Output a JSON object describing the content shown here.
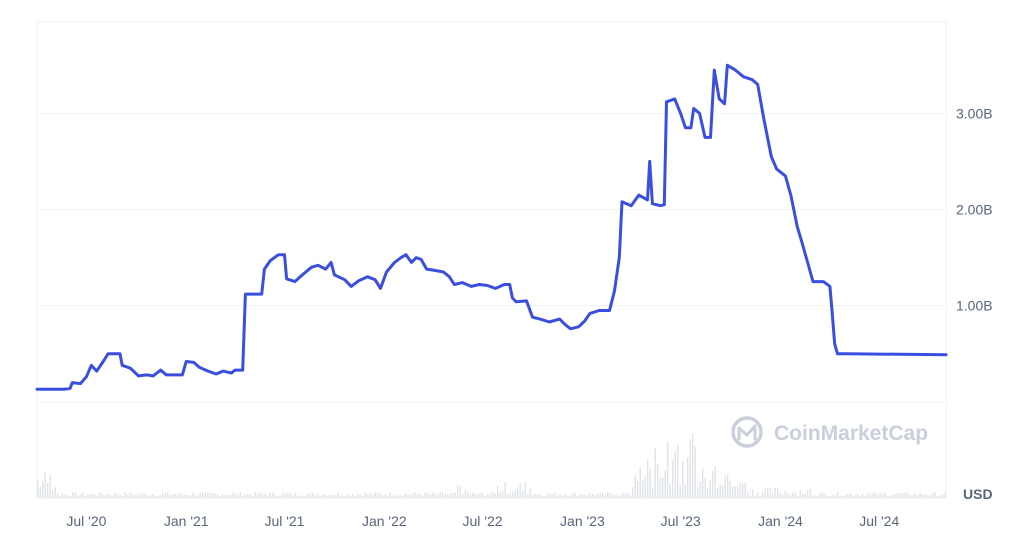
{
  "chart_data": {
    "type": "line",
    "title": "",
    "xlabel": "",
    "ylabel": "",
    "unit_label": "USD",
    "grid": true,
    "watermark": "CoinMarketCap",
    "colors": {
      "line": "#3a4fe0",
      "grid": "#eff2f5",
      "volume": "#dfe3ea",
      "axis_text": "#58667e"
    },
    "x_ticks": [
      "Jul '20",
      "Jan '21",
      "Jul '21",
      "Jan '22",
      "Jul '22",
      "Jan '23",
      "Jul '23",
      "Jan '24",
      "Jul '24"
    ],
    "x_range": [
      "2020-04-01",
      "2024-11-01"
    ],
    "y_ticks": [
      1000000000,
      2000000000,
      3000000000
    ],
    "y_tick_labels": [
      "1.00B",
      "2.00B",
      "3.00B"
    ],
    "ylim": [
      -1000000000,
      3950000000
    ],
    "series": [
      {
        "values": [
          [
            "2020-04-01",
            0.13
          ],
          [
            "2020-05-20",
            0.13
          ],
          [
            "2020-06-01",
            0.14
          ],
          [
            "2020-06-05",
            0.2
          ],
          [
            "2020-06-20",
            0.19
          ],
          [
            "2020-07-01",
            0.26
          ],
          [
            "2020-07-10",
            0.38
          ],
          [
            "2020-07-20",
            0.32
          ],
          [
            "2020-08-01",
            0.42
          ],
          [
            "2020-08-10",
            0.5
          ],
          [
            "2020-09-01",
            0.5
          ],
          [
            "2020-09-05",
            0.38
          ],
          [
            "2020-09-20",
            0.35
          ],
          [
            "2020-10-05",
            0.27
          ],
          [
            "2020-10-20",
            0.28
          ],
          [
            "2020-11-01",
            0.27
          ],
          [
            "2020-11-15",
            0.33
          ],
          [
            "2020-11-25",
            0.28
          ],
          [
            "2020-12-10",
            0.28
          ],
          [
            "2020-12-25",
            0.28
          ],
          [
            "2021-01-01",
            0.42
          ],
          [
            "2021-01-15",
            0.41
          ],
          [
            "2021-01-25",
            0.36
          ],
          [
            "2021-02-10",
            0.32
          ],
          [
            "2021-02-25",
            0.29
          ],
          [
            "2021-03-10",
            0.32
          ],
          [
            "2021-03-25",
            0.3
          ],
          [
            "2021-04-01",
            0.33
          ],
          [
            "2021-04-15",
            0.33
          ],
          [
            "2021-04-20",
            1.12
          ],
          [
            "2021-05-20",
            1.12
          ],
          [
            "2021-05-25",
            1.38
          ],
          [
            "2021-06-05",
            1.47
          ],
          [
            "2021-06-20",
            1.53
          ],
          [
            "2021-07-01",
            1.53
          ],
          [
            "2021-07-05",
            1.28
          ],
          [
            "2021-07-20",
            1.25
          ],
          [
            "2021-08-05",
            1.33
          ],
          [
            "2021-08-20",
            1.4
          ],
          [
            "2021-09-01",
            1.42
          ],
          [
            "2021-09-15",
            1.38
          ],
          [
            "2021-09-25",
            1.45
          ],
          [
            "2021-10-01",
            1.32
          ],
          [
            "2021-10-20",
            1.27
          ],
          [
            "2021-11-01",
            1.2
          ],
          [
            "2021-11-15",
            1.26
          ],
          [
            "2021-12-01",
            1.3
          ],
          [
            "2021-12-15",
            1.27
          ],
          [
            "2021-12-25",
            1.18
          ],
          [
            "2022-01-05",
            1.35
          ],
          [
            "2022-01-20",
            1.45
          ],
          [
            "2022-02-01",
            1.5
          ],
          [
            "2022-02-10",
            1.53
          ],
          [
            "2022-02-20",
            1.45
          ],
          [
            "2022-03-01",
            1.5
          ],
          [
            "2022-03-10",
            1.48
          ],
          [
            "2022-03-20",
            1.38
          ],
          [
            "2022-04-01",
            1.37
          ],
          [
            "2022-04-20",
            1.35
          ],
          [
            "2022-05-01",
            1.3
          ],
          [
            "2022-05-10",
            1.22
          ],
          [
            "2022-05-25",
            1.24
          ],
          [
            "2022-06-10",
            1.2
          ],
          [
            "2022-06-25",
            1.22
          ],
          [
            "2022-07-10",
            1.21
          ],
          [
            "2022-07-25",
            1.18
          ],
          [
            "2022-08-10",
            1.22
          ],
          [
            "2022-08-20",
            1.22
          ],
          [
            "2022-08-25",
            1.08
          ],
          [
            "2022-09-01",
            1.04
          ],
          [
            "2022-09-20",
            1.05
          ],
          [
            "2022-10-01",
            0.88
          ],
          [
            "2022-10-15",
            0.86
          ],
          [
            "2022-11-01",
            0.83
          ],
          [
            "2022-11-20",
            0.86
          ],
          [
            "2022-12-01",
            0.8
          ],
          [
            "2022-12-10",
            0.76
          ],
          [
            "2022-12-25",
            0.78
          ],
          [
            "2023-01-05",
            0.84
          ],
          [
            "2023-01-15",
            0.92
          ],
          [
            "2023-02-01",
            0.95
          ],
          [
            "2023-02-20",
            0.95
          ],
          [
            "2023-03-01",
            1.15
          ],
          [
            "2023-03-10",
            1.5
          ],
          [
            "2023-03-15",
            2.08
          ],
          [
            "2023-04-01",
            2.04
          ],
          [
            "2023-04-15",
            2.15
          ],
          [
            "2023-05-01",
            2.1
          ],
          [
            "2023-05-05",
            2.5
          ],
          [
            "2023-05-10",
            2.06
          ],
          [
            "2023-05-25",
            2.04
          ],
          [
            "2023-06-01",
            2.05
          ],
          [
            "2023-06-05",
            3.12
          ],
          [
            "2023-06-20",
            3.15
          ],
          [
            "2023-07-01",
            3.0
          ],
          [
            "2023-07-10",
            2.85
          ],
          [
            "2023-07-20",
            2.85
          ],
          [
            "2023-07-25",
            3.05
          ],
          [
            "2023-08-05",
            3.0
          ],
          [
            "2023-08-15",
            2.75
          ],
          [
            "2023-08-25",
            2.75
          ],
          [
            "2023-09-01",
            3.45
          ],
          [
            "2023-09-10",
            3.15
          ],
          [
            "2023-09-20",
            3.1
          ],
          [
            "2023-09-25",
            3.5
          ],
          [
            "2023-10-10",
            3.45
          ],
          [
            "2023-10-25",
            3.38
          ],
          [
            "2023-11-10",
            3.35
          ],
          [
            "2023-11-20",
            3.3
          ],
          [
            "2023-12-01",
            2.95
          ],
          [
            "2023-12-15",
            2.55
          ],
          [
            "2023-12-25",
            2.42
          ],
          [
            "2024-01-10",
            2.35
          ],
          [
            "2024-01-20",
            2.15
          ],
          [
            "2024-02-01",
            1.82
          ],
          [
            "2024-02-10",
            1.65
          ],
          [
            "2024-02-20",
            1.45
          ],
          [
            "2024-03-01",
            1.25
          ],
          [
            "2024-03-20",
            1.25
          ],
          [
            "2024-04-01",
            1.2
          ],
          [
            "2024-04-05",
            0.95
          ],
          [
            "2024-04-10",
            0.6
          ],
          [
            "2024-04-15",
            0.5
          ],
          [
            "2024-05-01",
            0.5
          ],
          [
            "2024-11-01",
            0.49
          ]
        ]
      }
    ]
  }
}
